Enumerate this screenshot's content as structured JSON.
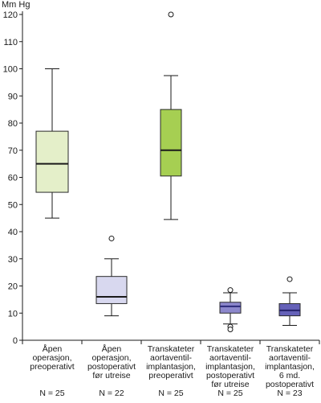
{
  "chart_data": {
    "type": "box",
    "ylabel": "Mm Hg",
    "ylim": [
      0,
      120
    ],
    "yticks": [
      0,
      10,
      20,
      30,
      40,
      50,
      60,
      70,
      80,
      90,
      100,
      110,
      120
    ],
    "grid": false,
    "categories": [
      {
        "label_lines": [
          "Åpen",
          "operasjon,",
          "preoperativt"
        ],
        "n_label": "N = 25",
        "whisker_low": 45,
        "q1": 54.5,
        "median": 65,
        "q3": 77,
        "whisker_high": 100,
        "outliers": [],
        "fill": "#e4efc9",
        "median_color": "#1a1a1a"
      },
      {
        "label_lines": [
          "Åpen",
          "operasjon,",
          "postoperativt",
          "før utreise"
        ],
        "n_label": "N = 22",
        "whisker_low": 9,
        "q1": 13.5,
        "median": 16,
        "q3": 23.5,
        "whisker_high": 30,
        "outliers": [
          37.5
        ],
        "fill": "#d8d8ef",
        "median_color": "#1a1a1a"
      },
      {
        "label_lines": [
          "Transkateter",
          "aortaventil-",
          "implantasjon,",
          "preoperativt"
        ],
        "n_label": "N = 25",
        "whisker_low": 44.5,
        "q1": 60.5,
        "median": 70,
        "q3": 85,
        "whisker_high": 97.5,
        "outliers": [
          120
        ],
        "fill": "#a6cf52",
        "median_color": "#1a1a1a"
      },
      {
        "label_lines": [
          "Transkateter",
          "aortaventil-",
          "implantasjon,",
          "postoperativt",
          "før utreise"
        ],
        "n_label": "N = 25",
        "whisker_low": 6,
        "q1": 10,
        "median": 12.5,
        "q3": 14,
        "whisker_high": 17.5,
        "outliers": [
          18.5,
          5,
          4
        ],
        "fill": "#8c87cc",
        "median_color": "#2d2a7a"
      },
      {
        "label_lines": [
          "Transkateter",
          "aortaventil-",
          "implantasjon,",
          "6 md.",
          "postoperativt"
        ],
        "n_label": "N = 23",
        "whisker_low": 5.5,
        "q1": 9,
        "median": 11,
        "q3": 13.5,
        "whisker_high": 17.5,
        "outliers": [
          22.5
        ],
        "fill": "#6561b8",
        "median_color": "#26236b"
      }
    ]
  }
}
